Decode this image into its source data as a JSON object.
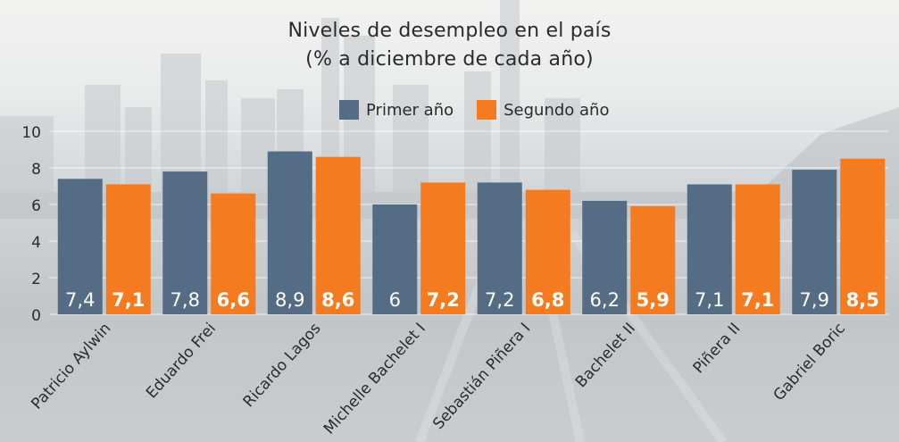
{
  "chart_data": {
    "type": "bar",
    "title": "Niveles de desempleo en el país",
    "subtitle": "(% a diciembre de cada año)",
    "categories": [
      "Patricio Aylwin",
      "Eduardo Frei",
      "Ricardo Lagos",
      "Michelle Bachelet I",
      "Sebastián Piñera I",
      "Bachelet II",
      "Piñera II",
      "Gabriel Boric"
    ],
    "series": [
      {
        "name": "Primer año",
        "color": "#556d84",
        "values": [
          7.4,
          7.8,
          8.9,
          6,
          7.2,
          6.2,
          7.1,
          7.9
        ],
        "labels": [
          "7,4",
          "7,8",
          "8,9",
          "6",
          "7,2",
          "6,2",
          "7,1",
          "7,9"
        ]
      },
      {
        "name": "Segundo año",
        "color": "#f47b20",
        "values": [
          7.1,
          6.6,
          8.6,
          7.2,
          6.8,
          5.9,
          7.1,
          8.5
        ],
        "labels": [
          "7,1",
          "6,6",
          "8,6",
          "7,2",
          "6,8",
          "5,9",
          "7,1",
          "8,5"
        ]
      }
    ],
    "yticks": [
      "0",
      "2",
      "4",
      "6",
      "8",
      "10"
    ],
    "ylim": [
      0,
      10
    ],
    "grid": true,
    "legend_position": "top"
  }
}
